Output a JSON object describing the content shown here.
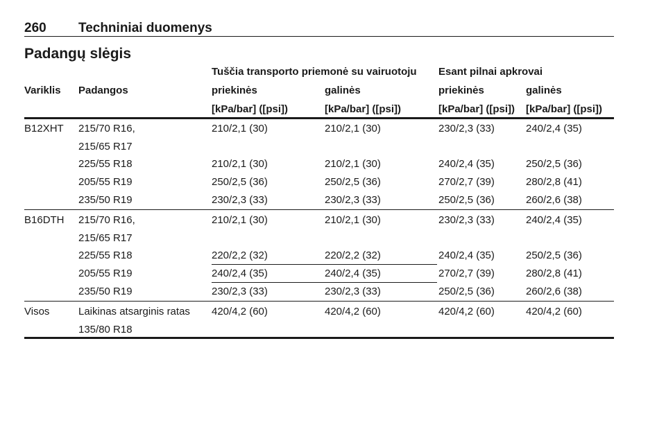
{
  "header": {
    "page_number": "260",
    "title": "Techniniai duomenys"
  },
  "section_title": "Padangų slėgis",
  "table": {
    "header_groups": [
      "Tuščia transporto priemonė su vairuotoju",
      "Esant pilnai apkrovai"
    ],
    "columns": [
      "Variklis",
      "Padangos",
      "priekinės",
      "galinės",
      "priekinės",
      "galinės"
    ],
    "units": [
      "[kPa/bar] ([psi])",
      "[kPa/bar] ([psi])",
      "[kPa/bar] ([psi])",
      "[kPa/bar] ([psi])"
    ],
    "groups": [
      {
        "engine": "B12XHT",
        "rows": [
          {
            "tyres": [
              "215/70 R16,",
              "215/65 R17"
            ],
            "values": [
              "210/2,1 (30)",
              "210/2,1 (30)",
              "230/2,3 (33)",
              "240/2,4 (35)"
            ]
          },
          {
            "tyres": [
              "225/55 R18"
            ],
            "values": [
              "210/2,1 (30)",
              "210/2,1 (30)",
              "240/2,4 (35)",
              "250/2,5 (36)"
            ]
          },
          {
            "tyres": [
              "205/55 R19"
            ],
            "values": [
              "250/2,5 (36)",
              "250/2,5 (36)",
              "270/2,7 (39)",
              "280/2,8 (41)"
            ]
          },
          {
            "tyres": [
              "235/50 R19"
            ],
            "values": [
              "230/2,3 (33)",
              "230/2,3 (33)",
              "250/2,5 (36)",
              "260/2,6 (38)"
            ]
          }
        ]
      },
      {
        "engine": "B16DTH",
        "rows": [
          {
            "tyres": [
              "215/70 R16,",
              "215/65 R17"
            ],
            "values": [
              "210/2,1 (30)",
              "210/2,1 (30)",
              "230/2,3 (33)",
              "240/2,4 (35)"
            ]
          },
          {
            "tyres": [
              "225/55 R18"
            ],
            "values": [
              "220/2,2 (32)",
              "220/2,2 (32)",
              "240/2,4 (35)",
              "250/2,5 (36)"
            ]
          },
          {
            "tyres": [
              "205/55 R19"
            ],
            "values": [
              "240/2,4 (35)",
              "240/2,4 (35)",
              "270/2,7 (39)",
              "280/2,8 (41)"
            ]
          },
          {
            "tyres": [
              "235/50 R19"
            ],
            "values": [
              "230/2,3 (33)",
              "230/2,3 (33)",
              "250/2,5 (36)",
              "260/2,6 (38)"
            ]
          }
        ]
      },
      {
        "engine": "Visos",
        "rows": [
          {
            "tyres": [
              "Laikinas atsarginis ratas",
              "135/80 R18"
            ],
            "values": [
              "420/4,2 (60)",
              "420/4,2 (60)",
              "420/4,2 (60)",
              "420/4,2 (60)"
            ]
          }
        ]
      }
    ]
  }
}
